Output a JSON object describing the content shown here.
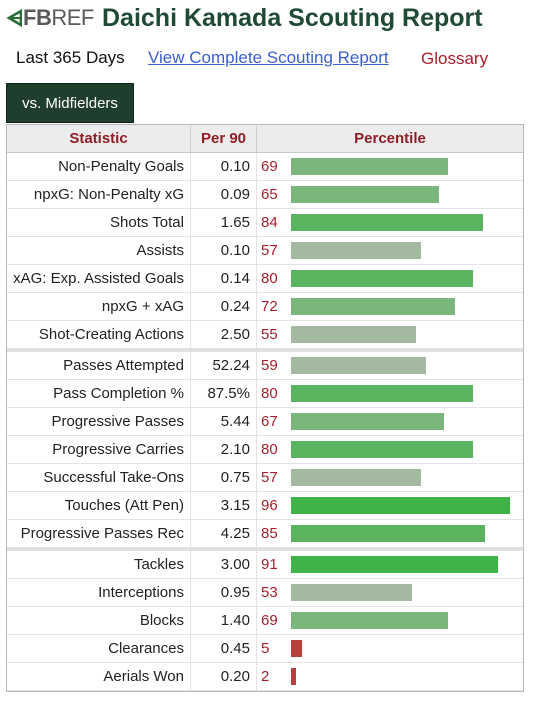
{
  "logo": {
    "fb": "FB",
    "ref": "REF",
    "color": "#2a6c3a"
  },
  "header": {
    "title": "Daichi Kamada Scouting Report"
  },
  "subnav": {
    "period": "Last 365 Days",
    "report_link": "View Complete Scouting Report",
    "glossary": "Glossary"
  },
  "tab": {
    "label": "vs. Midfielders"
  },
  "table": {
    "columns": {
      "statistic": "Statistic",
      "per90": "Per 90",
      "percentile": "Percentile"
    },
    "bar_colors": {
      "high": "#3fb24a",
      "mid_high": "#7bb77d",
      "mid": "#a3b9a0",
      "low": "#b8403d"
    },
    "groups": [
      [
        {
          "stat": "Non-Penalty Goals",
          "per90": "0.10",
          "pct": 69
        },
        {
          "stat": "npxG: Non-Penalty xG",
          "per90": "0.09",
          "pct": 65
        },
        {
          "stat": "Shots Total",
          "per90": "1.65",
          "pct": 84
        },
        {
          "stat": "Assists",
          "per90": "0.10",
          "pct": 57
        },
        {
          "stat": "xAG: Exp. Assisted Goals",
          "per90": "0.14",
          "pct": 80
        },
        {
          "stat": "npxG + xAG",
          "per90": "0.24",
          "pct": 72
        },
        {
          "stat": "Shot-Creating Actions",
          "per90": "2.50",
          "pct": 55
        }
      ],
      [
        {
          "stat": "Passes Attempted",
          "per90": "52.24",
          "pct": 59
        },
        {
          "stat": "Pass Completion %",
          "per90": "87.5%",
          "pct": 80
        },
        {
          "stat": "Progressive Passes",
          "per90": "5.44",
          "pct": 67
        },
        {
          "stat": "Progressive Carries",
          "per90": "2.10",
          "pct": 80
        },
        {
          "stat": "Successful Take-Ons",
          "per90": "0.75",
          "pct": 57
        },
        {
          "stat": "Touches (Att Pen)",
          "per90": "3.15",
          "pct": 96
        },
        {
          "stat": "Progressive Passes Rec",
          "per90": "4.25",
          "pct": 85
        }
      ],
      [
        {
          "stat": "Tackles",
          "per90": "3.00",
          "pct": 91
        },
        {
          "stat": "Interceptions",
          "per90": "0.95",
          "pct": 53
        },
        {
          "stat": "Blocks",
          "per90": "1.40",
          "pct": 69
        },
        {
          "stat": "Clearances",
          "per90": "0.45",
          "pct": 5
        },
        {
          "stat": "Aerials Won",
          "per90": "0.20",
          "pct": 2
        }
      ]
    ]
  }
}
